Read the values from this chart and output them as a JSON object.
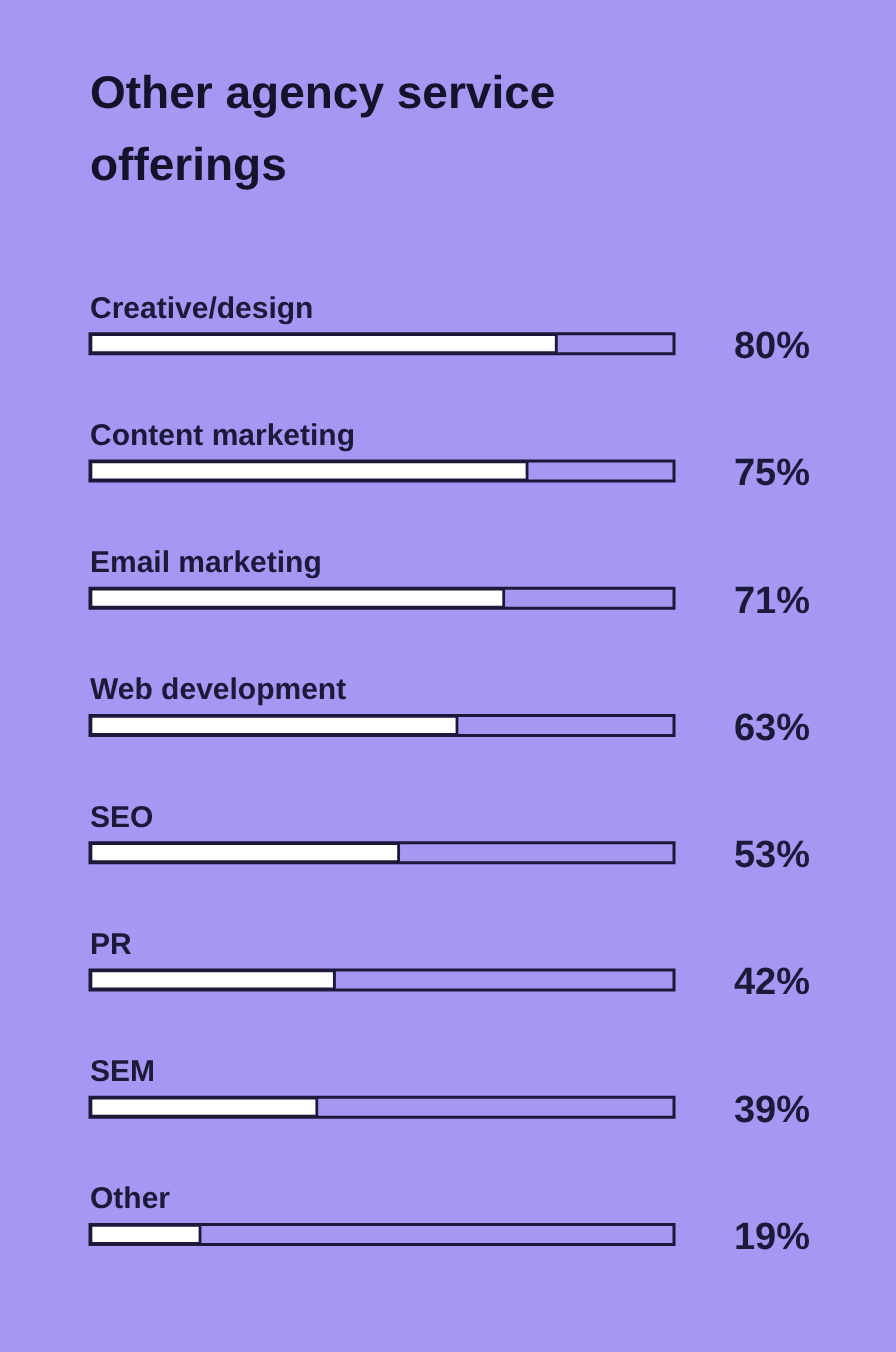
{
  "chart_data": {
    "type": "bar",
    "orientation": "horizontal",
    "title": "Other agency service offerings",
    "categories": [
      "Creative/design",
      "Content marketing",
      "Email marketing",
      "Web development",
      "SEO",
      "PR",
      "SEM",
      "Other"
    ],
    "values": [
      80,
      75,
      71,
      63,
      53,
      42,
      39,
      19
    ],
    "value_labels": [
      "80%",
      "75%",
      "71%",
      "63%",
      "53%",
      "42%",
      "39%",
      "19%"
    ],
    "color": "#ffffff",
    "xlim": [
      0,
      100
    ]
  }
}
